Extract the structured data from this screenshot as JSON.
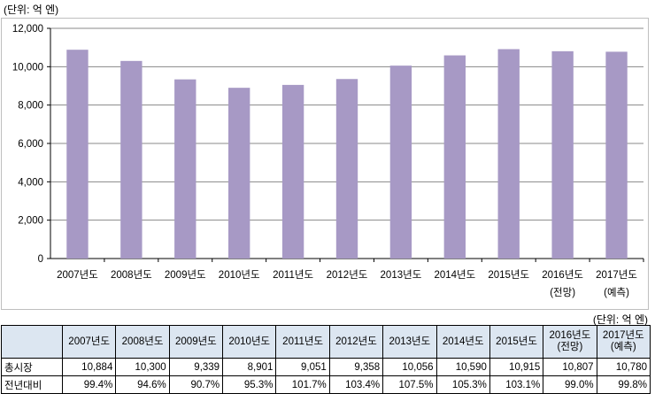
{
  "unit_label": "(단위: 억 엔)",
  "chart_data": {
    "type": "bar",
    "categories": [
      [
        "2007년도"
      ],
      [
        "2008년도"
      ],
      [
        "2009년도"
      ],
      [
        "2010년도"
      ],
      [
        "2011년도"
      ],
      [
        "2012년도"
      ],
      [
        "2013년도"
      ],
      [
        "2014년도"
      ],
      [
        "2015년도"
      ],
      [
        "2016년도",
        "(전망)"
      ],
      [
        "2017년도",
        "(예측)"
      ]
    ],
    "values": [
      10884,
      10300,
      9339,
      8901,
      9051,
      9358,
      10056,
      10590,
      10915,
      10807,
      10780
    ],
    "ylim": [
      0,
      12000
    ],
    "yticks": [
      0,
      2000,
      4000,
      6000,
      8000,
      10000,
      12000
    ],
    "ytick_labels": [
      "0",
      "2,000",
      "4,000",
      "6,000",
      "8,000",
      "10,000",
      "12,000"
    ],
    "grid": true,
    "bar_color": "#a799c5",
    "grid_color": "#888888"
  },
  "table": {
    "unit_label": "(단위: 억 엔)",
    "header": [
      [
        "2007년도"
      ],
      [
        "2008년도"
      ],
      [
        "2009년도"
      ],
      [
        "2010년도"
      ],
      [
        "2011년도"
      ],
      [
        "2012년도"
      ],
      [
        "2013년도"
      ],
      [
        "2014년도"
      ],
      [
        "2015년도"
      ],
      [
        "2016년도",
        "(전망)"
      ],
      [
        "2017년도",
        "(예측)"
      ]
    ],
    "rows": [
      {
        "label": "총시장",
        "cells": [
          "10,884",
          "10,300",
          "9,339",
          "8,901",
          "9,051",
          "9,358",
          "10,056",
          "10,590",
          "10,915",
          "10,807",
          "10,780"
        ]
      },
      {
        "label": "전년대비",
        "cells": [
          "99.4%",
          "94.6%",
          "90.7%",
          "95.3%",
          "101.7%",
          "103.4%",
          "107.5%",
          "105.3%",
          "103.1%",
          "99.0%",
          "99.8%"
        ]
      }
    ],
    "header_bg": "#dce6f1"
  }
}
